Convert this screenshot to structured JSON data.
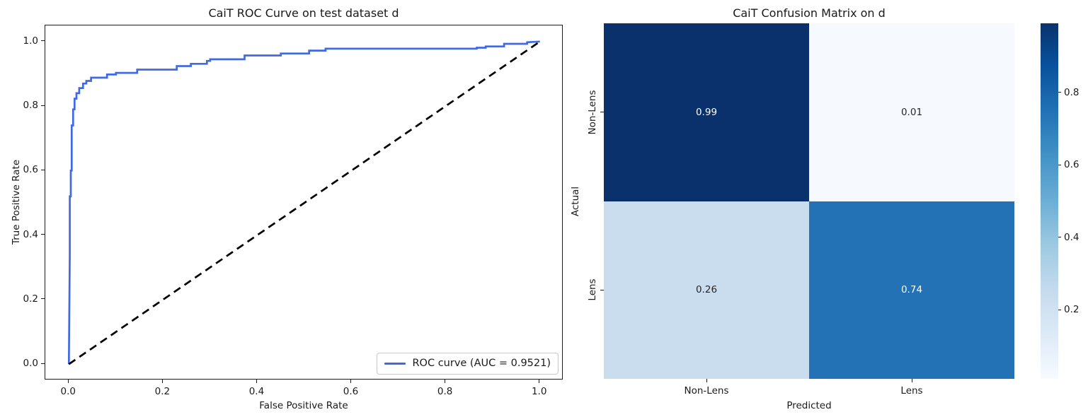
{
  "roc": {
    "title": "CaiT ROC Curve on test dataset d",
    "xlabel": "False Positive Rate",
    "ylabel": "True Positive Rate",
    "xtick_labels": [
      "0.0",
      "0.2",
      "0.4",
      "0.6",
      "0.8",
      "1.0"
    ],
    "ytick_labels": [
      "0.0",
      "0.2",
      "0.4",
      "0.6",
      "0.8",
      "1.0"
    ],
    "legend": {
      "label": "ROC curve (AUC = 0.9521)"
    },
    "auc": 0.9521,
    "curve_color": "#4169e1",
    "diagonal_color": "#000000"
  },
  "confusion": {
    "title": "CaiT Confusion Matrix on d",
    "xlabel": "Predicted",
    "ylabel": "Actual",
    "row_labels": [
      "Non-Lens",
      "Lens"
    ],
    "col_labels": [
      "Non-Lens",
      "Lens"
    ],
    "cells": [
      {
        "text": "0.99",
        "bg": "#0a316b",
        "fg": "#ffffff"
      },
      {
        "text": "0.01",
        "bg": "#f6faff",
        "fg": "#262626"
      },
      {
        "text": "0.26",
        "bg": "#c9ddef",
        "fg": "#262626"
      },
      {
        "text": "0.74",
        "bg": "#2472b6",
        "fg": "#ffffff"
      }
    ],
    "colorbar": {
      "tick_labels": [
        "0.8",
        "0.6",
        "0.4",
        "0.2"
      ],
      "tick_values": [
        0.8,
        0.6,
        0.4,
        0.2
      ],
      "vmin": 0.01,
      "vmax": 0.99,
      "top_color": "#08306b",
      "bottom_color": "#f7fbff"
    }
  },
  "chart_data": [
    {
      "type": "line",
      "title": "CaiT ROC Curve on test dataset d",
      "xlabel": "False Positive Rate",
      "ylabel": "True Positive Rate",
      "xlim": [
        -0.05,
        1.05
      ],
      "ylim": [
        -0.05,
        1.05
      ],
      "grid": false,
      "legend_position": "lower right",
      "series": [
        {
          "id": "roc-curve",
          "name": "ROC curve (AUC = 0.9521)",
          "color": "#4169e1",
          "style": "solid",
          "points": [
            [
              0.0,
              0.0
            ],
            [
              0.002,
              0.345
            ],
            [
              0.002,
              0.52
            ],
            [
              0.004,
              0.52
            ],
            [
              0.004,
              0.6
            ],
            [
              0.006,
              0.6
            ],
            [
              0.006,
              0.74
            ],
            [
              0.009,
              0.74
            ],
            [
              0.009,
              0.79
            ],
            [
              0.012,
              0.79
            ],
            [
              0.012,
              0.823
            ],
            [
              0.016,
              0.823
            ],
            [
              0.016,
              0.84
            ],
            [
              0.022,
              0.84
            ],
            [
              0.022,
              0.856
            ],
            [
              0.03,
              0.856
            ],
            [
              0.03,
              0.87
            ],
            [
              0.037,
              0.87
            ],
            [
              0.037,
              0.878
            ],
            [
              0.047,
              0.878
            ],
            [
              0.047,
              0.888
            ],
            [
              0.081,
              0.888
            ],
            [
              0.081,
              0.898
            ],
            [
              0.1,
              0.898
            ],
            [
              0.1,
              0.903
            ],
            [
              0.145,
              0.903
            ],
            [
              0.145,
              0.913
            ],
            [
              0.229,
              0.913
            ],
            [
              0.229,
              0.924
            ],
            [
              0.259,
              0.924
            ],
            [
              0.259,
              0.931
            ],
            [
              0.293,
              0.931
            ],
            [
              0.293,
              0.94
            ],
            [
              0.3,
              0.94
            ],
            [
              0.3,
              0.945
            ],
            [
              0.373,
              0.945
            ],
            [
              0.373,
              0.957
            ],
            [
              0.45,
              0.957
            ],
            [
              0.45,
              0.963
            ],
            [
              0.51,
              0.963
            ],
            [
              0.51,
              0.972
            ],
            [
              0.545,
              0.972
            ],
            [
              0.545,
              0.978
            ],
            [
              0.866,
              0.978
            ],
            [
              0.866,
              0.981
            ],
            [
              0.885,
              0.981
            ],
            [
              0.885,
              0.985
            ],
            [
              0.924,
              0.985
            ],
            [
              0.924,
              0.993
            ],
            [
              0.973,
              0.993
            ],
            [
              0.973,
              0.998
            ],
            [
              1.0,
              1.0
            ]
          ]
        },
        {
          "id": "chance-diagonal",
          "name": "chance-diagonal",
          "color": "#000000",
          "style": "dashed",
          "points": [
            [
              0.0,
              0.0
            ],
            [
              1.0,
              1.0
            ]
          ]
        }
      ]
    },
    {
      "type": "heatmap",
      "title": "CaiT Confusion Matrix on d",
      "xlabel": "Predicted",
      "ylabel": "Actual",
      "categories_x": [
        "Non-Lens",
        "Lens"
      ],
      "categories_y": [
        "Non-Lens",
        "Lens"
      ],
      "values": [
        [
          0.99,
          0.01
        ],
        [
          0.26,
          0.74
        ]
      ],
      "colormap": "Blues",
      "colorbar_ticks": [
        0.2,
        0.4,
        0.6,
        0.8
      ],
      "legend_position": "right"
    }
  ]
}
